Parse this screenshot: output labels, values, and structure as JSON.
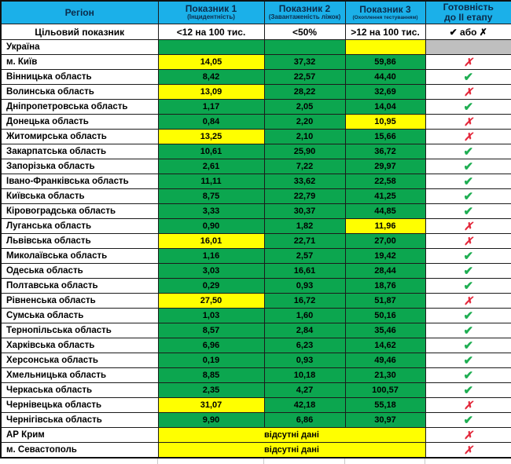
{
  "colors": {
    "header_bg": "#1BB0E9",
    "header_text": "#0B2B4A",
    "green": "#0CA64F",
    "yellow": "#FFFF00",
    "gray": "#BFBFBF",
    "white": "#FFFFFF",
    "check": "#1FAE52",
    "cross": "#E3273A"
  },
  "symbols": {
    "check": "✔",
    "cross": "✗"
  },
  "chart_data": {
    "type": "table",
    "header": {
      "region": "Регіон",
      "cols": [
        {
          "title": "Показник 1",
          "subtitle": "(Інцидентність)",
          "target": "<12 на 100 тис."
        },
        {
          "title": "Показник 2",
          "subtitle": "(Завантаженість ліжок)",
          "target": "<50%"
        },
        {
          "title": "Показник 3",
          "subtitle": "(Охоплення тестуванням)",
          "target": ">12 на 100 тис."
        }
      ],
      "readiness_line1": "Готовність",
      "readiness_line2": "до II етапу",
      "target_row_label": "Цільовий показник",
      "readiness_target": "✔ або ✗"
    },
    "no_data_label": "відсутні дані",
    "rows": [
      {
        "region": "Україна",
        "values": [
          "",
          "",
          ""
        ],
        "flags": [
          "green",
          "green",
          "yellow"
        ],
        "readiness": "gray"
      },
      {
        "region": "м. Київ",
        "values": [
          "14,05",
          "37,32",
          "59,86"
        ],
        "flags": [
          "yellow",
          "green",
          "green"
        ],
        "readiness": "cross"
      },
      {
        "region": "Вінницька область",
        "values": [
          "8,42",
          "22,57",
          "44,40"
        ],
        "flags": [
          "green",
          "green",
          "green"
        ],
        "readiness": "check"
      },
      {
        "region": "Волинська область",
        "values": [
          "13,09",
          "28,22",
          "32,69"
        ],
        "flags": [
          "yellow",
          "green",
          "green"
        ],
        "readiness": "cross"
      },
      {
        "region": "Дніпропетровська область",
        "values": [
          "1,17",
          "2,05",
          "14,04"
        ],
        "flags": [
          "green",
          "green",
          "green"
        ],
        "readiness": "check"
      },
      {
        "region": "Донецька область",
        "values": [
          "0,84",
          "2,20",
          "10,95"
        ],
        "flags": [
          "green",
          "green",
          "yellow"
        ],
        "readiness": "cross"
      },
      {
        "region": "Житомирська область",
        "values": [
          "13,25",
          "2,10",
          "15,66"
        ],
        "flags": [
          "yellow",
          "green",
          "green"
        ],
        "readiness": "cross"
      },
      {
        "region": "Закарпатська область",
        "values": [
          "10,61",
          "25,90",
          "36,72"
        ],
        "flags": [
          "green",
          "green",
          "green"
        ],
        "readiness": "check"
      },
      {
        "region": "Запорізька область",
        "values": [
          "2,61",
          "7,22",
          "29,97"
        ],
        "flags": [
          "green",
          "green",
          "green"
        ],
        "readiness": "check"
      },
      {
        "region": "Івано-Франківська область",
        "values": [
          "11,11",
          "33,62",
          "22,58"
        ],
        "flags": [
          "green",
          "green",
          "green"
        ],
        "readiness": "check"
      },
      {
        "region": "Київська область",
        "values": [
          "8,75",
          "22,79",
          "41,25"
        ],
        "flags": [
          "green",
          "green",
          "green"
        ],
        "readiness": "check"
      },
      {
        "region": "Кіровоградська область",
        "values": [
          "3,33",
          "30,37",
          "44,85"
        ],
        "flags": [
          "green",
          "green",
          "green"
        ],
        "readiness": "check"
      },
      {
        "region": "Луганська область",
        "values": [
          "0,90",
          "1,82",
          "11,96"
        ],
        "flags": [
          "green",
          "green",
          "yellow"
        ],
        "readiness": "cross"
      },
      {
        "region": "Львівська область",
        "values": [
          "16,01",
          "22,71",
          "27,00"
        ],
        "flags": [
          "yellow",
          "green",
          "green"
        ],
        "readiness": "cross"
      },
      {
        "region": "Миколаївська область",
        "values": [
          "1,16",
          "2,57",
          "19,42"
        ],
        "flags": [
          "green",
          "green",
          "green"
        ],
        "readiness": "check"
      },
      {
        "region": "Одеська область",
        "values": [
          "3,03",
          "16,61",
          "28,44"
        ],
        "flags": [
          "green",
          "green",
          "green"
        ],
        "readiness": "check"
      },
      {
        "region": "Полтавська область",
        "values": [
          "0,29",
          "0,93",
          "18,76"
        ],
        "flags": [
          "green",
          "green",
          "green"
        ],
        "readiness": "check"
      },
      {
        "region": "Рівненська область",
        "values": [
          "27,50",
          "16,72",
          "51,87"
        ],
        "flags": [
          "yellow",
          "green",
          "green"
        ],
        "readiness": "cross"
      },
      {
        "region": "Сумська область",
        "values": [
          "1,03",
          "1,60",
          "50,16"
        ],
        "flags": [
          "green",
          "green",
          "green"
        ],
        "readiness": "check"
      },
      {
        "region": "Тернопільська область",
        "values": [
          "8,57",
          "2,84",
          "35,46"
        ],
        "flags": [
          "green",
          "green",
          "green"
        ],
        "readiness": "check"
      },
      {
        "region": "Харківська область",
        "values": [
          "6,96",
          "6,23",
          "14,62"
        ],
        "flags": [
          "green",
          "green",
          "green"
        ],
        "readiness": "check"
      },
      {
        "region": "Херсонська область",
        "values": [
          "0,19",
          "0,93",
          "49,46"
        ],
        "flags": [
          "green",
          "green",
          "green"
        ],
        "readiness": "check"
      },
      {
        "region": "Хмельницька область",
        "values": [
          "8,85",
          "10,18",
          "21,30"
        ],
        "flags": [
          "green",
          "green",
          "green"
        ],
        "readiness": "check"
      },
      {
        "region": "Черкаська область",
        "values": [
          "2,35",
          "4,27",
          "100,57"
        ],
        "flags": [
          "green",
          "green",
          "green"
        ],
        "readiness": "check"
      },
      {
        "region": "Чернівецька область",
        "values": [
          "31,07",
          "42,18",
          "55,18"
        ],
        "flags": [
          "yellow",
          "green",
          "green"
        ],
        "readiness": "cross"
      },
      {
        "region": "Чернігівська область",
        "values": [
          "9,90",
          "6,86",
          "30,97"
        ],
        "flags": [
          "green",
          "green",
          "green"
        ],
        "readiness": "check"
      },
      {
        "region": "АР Крим",
        "no_data": true,
        "readiness": "cross"
      },
      {
        "region": "м. Севастополь",
        "no_data": true,
        "readiness": "cross"
      }
    ]
  }
}
